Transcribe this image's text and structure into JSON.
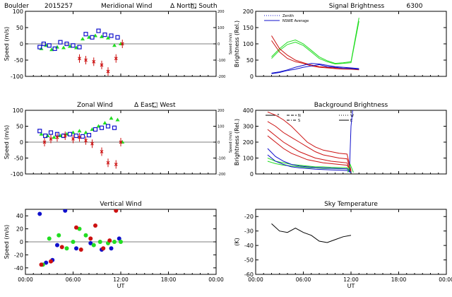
{
  "page": {
    "header_site": "Boulder",
    "header_code": "2015257",
    "bottom_xlabel": "UT",
    "time_ticks": [
      "00:00",
      "06:00",
      "12:00",
      "18:00",
      "00:00"
    ]
  },
  "colors": {
    "green": "#22dd22",
    "blue": "#1010cc",
    "red": "#cc1111",
    "black": "#000000"
  },
  "chart_data": [
    {
      "id": "meridional",
      "type": "scatter",
      "title": "Meridional Wind",
      "legend_text": [
        "Δ North,",
        "□ South"
      ],
      "ylabel": "Speed (m/s)",
      "right_ylabel": "Speed (m/s)",
      "xlim": [
        0,
        24
      ],
      "ylim": [
        -100,
        100
      ],
      "yticks": [
        -100,
        -50,
        0,
        50,
        100
      ],
      "right_ticks": [
        "-200",
        "-100",
        "0",
        "100",
        "200"
      ],
      "series": [
        {
          "color": "green",
          "marker": "triangle",
          "x": [
            2.0,
            2.6,
            3.3,
            4.0,
            4.8,
            5.6,
            6.4,
            7.2,
            8.0,
            8.8,
            9.6,
            10.4,
            11.2,
            12.0
          ],
          "y": [
            -15,
            -5,
            -18,
            -10,
            -12,
            -8,
            -12,
            15,
            20,
            25,
            22,
            18,
            -5,
            0
          ]
        },
        {
          "color": "blue",
          "marker": "square",
          "x": [
            1.8,
            2.3,
            3.0,
            3.7,
            4.4,
            5.2,
            6.0,
            6.8,
            7.6,
            8.4,
            9.2,
            10.0,
            10.8,
            11.6
          ],
          "y": [
            -10,
            0,
            -5,
            -15,
            5,
            0,
            -5,
            -10,
            30,
            20,
            40,
            28,
            25,
            20
          ]
        },
        {
          "color": "red",
          "marker": "x",
          "x": [
            6.8,
            7.6,
            8.6,
            9.6,
            10.4,
            11.4,
            12.2
          ],
          "y": [
            -45,
            -50,
            -55,
            -65,
            -85,
            -45,
            0
          ]
        }
      ]
    },
    {
      "id": "signal",
      "type": "line",
      "title": "Signal Brightness",
      "title_extra": "6300",
      "legend": [
        {
          "label": "Zenith",
          "style": "dotted"
        },
        {
          "label": "NSWE Average",
          "style": "solid"
        }
      ],
      "ylabel": "Brightness (Rel.)",
      "xlim": [
        0,
        24
      ],
      "ylim": [
        0,
        200
      ],
      "yticks": [
        0,
        50,
        100,
        150,
        200
      ],
      "series": [
        {
          "color": "green",
          "x": [
            2,
            3,
            4,
            5,
            6,
            7,
            8,
            9,
            10,
            11,
            12,
            13
          ],
          "y": [
            60,
            85,
            105,
            112,
            100,
            80,
            60,
            48,
            40,
            42,
            45,
            180
          ]
        },
        {
          "color": "green",
          "x": [
            2,
            3,
            4,
            5,
            6,
            7,
            8,
            9,
            10,
            11,
            12,
            13
          ],
          "y": [
            55,
            80,
            98,
            105,
            95,
            75,
            55,
            45,
            38,
            40,
            42,
            170
          ]
        },
        {
          "color": "red",
          "x": [
            2,
            3,
            4,
            5,
            6,
            7,
            8,
            9,
            10,
            11,
            12,
            13
          ],
          "y": [
            125,
            85,
            65,
            50,
            42,
            35,
            30,
            28,
            26,
            25,
            25,
            22
          ]
        },
        {
          "color": "red",
          "x": [
            2,
            3,
            4,
            5,
            6,
            7,
            8,
            9,
            10,
            11,
            12,
            13
          ],
          "y": [
            110,
            75,
            55,
            45,
            40,
            32,
            28,
            26,
            24,
            22,
            22,
            20
          ]
        },
        {
          "color": "blue",
          "x": [
            2,
            3,
            4,
            5,
            6,
            7,
            8,
            9,
            10,
            11,
            12,
            13
          ],
          "y": [
            8,
            12,
            18,
            22,
            28,
            32,
            36,
            30,
            28,
            25,
            24,
            22
          ]
        },
        {
          "color": "blue",
          "x": [
            2,
            3,
            4,
            5,
            6,
            7,
            8,
            9,
            10,
            11,
            12,
            13
          ],
          "y": [
            10,
            14,
            20,
            28,
            34,
            40,
            38,
            34,
            30,
            28,
            26,
            24
          ]
        }
      ]
    },
    {
      "id": "zonal",
      "type": "scatter",
      "title": "Zonal Wind",
      "legend_text": [
        "Δ East,",
        "□ West"
      ],
      "ylabel": "Speed (m/s)",
      "right_ylabel": "Speed (m/s)",
      "xlim": [
        0,
        24
      ],
      "ylim": [
        -100,
        100
      ],
      "yticks": [
        -100,
        -50,
        0,
        50,
        100
      ],
      "right_ticks": [
        "-200",
        "-100",
        "0",
        "100",
        "200"
      ],
      "series": [
        {
          "color": "green",
          "marker": "triangle",
          "x": [
            2.0,
            2.8,
            3.6,
            4.4,
            5.2,
            6.0,
            6.8,
            7.6,
            8.4,
            9.2,
            10.0,
            10.8,
            11.6,
            12.2
          ],
          "y": [
            25,
            20,
            15,
            20,
            25,
            30,
            35,
            30,
            40,
            50,
            60,
            75,
            70,
            0
          ]
        },
        {
          "color": "blue",
          "marker": "square",
          "x": [
            1.8,
            2.5,
            3.2,
            4.0,
            4.8,
            5.6,
            6.4,
            7.2,
            8.0,
            8.8,
            9.6,
            10.4,
            11.2
          ],
          "y": [
            35,
            20,
            30,
            25,
            20,
            25,
            20,
            18,
            22,
            40,
            45,
            50,
            45
          ]
        },
        {
          "color": "red",
          "marker": "x",
          "x": [
            2.4,
            3.2,
            4.0,
            5.0,
            6.0,
            6.8,
            7.6,
            8.4,
            9.6,
            10.4,
            11.4,
            12.0
          ],
          "y": [
            0,
            10,
            15,
            20,
            10,
            15,
            5,
            -5,
            -30,
            -65,
            -70,
            0
          ]
        }
      ]
    },
    {
      "id": "background",
      "type": "line",
      "title": "Background Brightness",
      "legend": [
        {
          "label": "Z",
          "style": "solid"
        },
        {
          "label": "N",
          "style": "dashed"
        },
        {
          "label": "S",
          "style": "dashdot"
        },
        {
          "label": "W",
          "style": "dotted"
        },
        {
          "label": "E",
          "style": "solid"
        }
      ],
      "ylabel": "Brightness (Rel.)",
      "xlim": [
        0,
        24
      ],
      "ylim": [
        0,
        400
      ],
      "yticks": [
        0,
        100,
        200,
        300,
        400
      ],
      "series": [
        {
          "color": "red",
          "x": [
            1.5,
            2.5,
            3.5,
            4.5,
            5.5,
            6.5,
            7.5,
            8.5,
            9.5,
            10.5,
            11.5,
            12.0
          ],
          "y": [
            390,
            370,
            340,
            300,
            250,
            200,
            170,
            150,
            140,
            130,
            125,
            20
          ]
        },
        {
          "color": "red",
          "x": [
            1.5,
            2.5,
            3.5,
            4.5,
            5.5,
            6.5,
            7.5,
            8.5,
            9.5,
            10.5,
            11.5,
            12.0
          ],
          "y": [
            330,
            300,
            260,
            230,
            200,
            170,
            140,
            120,
            110,
            100,
            95,
            20
          ]
        },
        {
          "color": "red",
          "x": [
            1.5,
            2.5,
            3.5,
            4.5,
            5.5,
            6.5,
            7.5,
            8.5,
            9.5,
            10.5,
            11.5,
            12.0
          ],
          "y": [
            280,
            240,
            200,
            170,
            140,
            120,
            100,
            90,
            80,
            75,
            70,
            15
          ]
        },
        {
          "color": "red",
          "x": [
            1.5,
            2.5,
            3.5,
            4.5,
            5.5,
            6.5,
            7.5,
            8.5,
            9.5,
            10.5,
            11.5,
            12.0
          ],
          "y": [
            240,
            200,
            160,
            130,
            110,
            90,
            80,
            70,
            65,
            60,
            55,
            15
          ]
        },
        {
          "color": "green",
          "x": [
            1.5,
            2.5,
            3.5,
            4.5,
            5.5,
            6.5,
            7.5,
            8.5,
            9.5,
            10.5,
            11.5,
            12.0
          ],
          "y": [
            100,
            80,
            70,
            60,
            55,
            50,
            45,
            45,
            42,
            40,
            40,
            10
          ]
        },
        {
          "color": "green",
          "x": [
            1.5,
            2.5,
            3.5,
            4.5,
            5.5,
            6.5,
            7.5,
            8.5,
            9.5,
            10.5,
            11.5,
            12.0
          ],
          "y": [
            80,
            65,
            55,
            50,
            45,
            40,
            38,
            35,
            34,
            33,
            32,
            10
          ]
        },
        {
          "color": "blue",
          "x": [
            1.5,
            2.5,
            3.5,
            4.5,
            5.5,
            6.5,
            7.5,
            8.5,
            9.5,
            10.5,
            11.5,
            12.0
          ],
          "y": [
            160,
            110,
            80,
            60,
            50,
            45,
            40,
            38,
            36,
            34,
            32,
            10
          ]
        },
        {
          "color": "blue",
          "x": [
            1.5,
            2.5,
            3.5,
            4.5,
            5.5,
            6.5,
            7.5,
            8.5,
            9.5,
            10.5,
            11.5,
            12.0
          ],
          "y": [
            120,
            80,
            60,
            45,
            38,
            34,
            30,
            28,
            26,
            24,
            22,
            8
          ]
        },
        {
          "color": "blue",
          "x": [
            11.8,
            12.0,
            12.2
          ],
          "y": [
            20,
            300,
            400
          ]
        },
        {
          "color": "green",
          "x": [
            11.6,
            11.9,
            12.3
          ],
          "y": [
            10,
            60,
            10
          ]
        }
      ]
    },
    {
      "id": "vertical",
      "type": "scatter",
      "title": "Vertical Wind",
      "ylabel": "Speed (m/s)",
      "xlim": [
        0,
        24
      ],
      "ylim": [
        -50,
        50
      ],
      "yticks": [
        -40,
        -20,
        0,
        20,
        40
      ],
      "series": [
        {
          "color": "blue",
          "marker": "circle",
          "x": [
            1.8,
            2.6,
            3.4,
            4.0,
            5.0,
            6.4,
            8.2,
            9.6,
            10.8,
            11.8
          ],
          "y": [
            43,
            -32,
            -28,
            -5,
            48,
            -10,
            -2,
            -12,
            -10,
            5
          ]
        },
        {
          "color": "green",
          "marker": "circle",
          "x": [
            2.2,
            3.0,
            4.2,
            5.2,
            6.0,
            6.8,
            7.6,
            8.6,
            9.4,
            10.4,
            11.2,
            12.0
          ],
          "y": [
            -35,
            5,
            10,
            -10,
            0,
            20,
            10,
            -5,
            0,
            -2,
            0,
            0
          ]
        },
        {
          "color": "red",
          "marker": "circle",
          "x": [
            2.0,
            3.2,
            4.6,
            6.4,
            7.0,
            8.2,
            8.8,
            9.8,
            10.6,
            11.4
          ],
          "y": [
            -35,
            -30,
            -8,
            22,
            -12,
            5,
            25,
            -10,
            2,
            48
          ]
        }
      ]
    },
    {
      "id": "sky",
      "type": "line",
      "title": "Sky Temperature",
      "ylabel": "(K)",
      "xlim": [
        0,
        24
      ],
      "ylim": [
        -60,
        -15
      ],
      "yticks": [
        -60,
        -50,
        -40,
        -30,
        -20
      ],
      "series": [
        {
          "color": "black",
          "x": [
            2,
            3,
            4,
            5,
            6,
            7,
            8,
            9,
            10,
            11,
            12
          ],
          "y": [
            -25,
            -30,
            -31,
            -28,
            -31,
            -33,
            -37,
            -38,
            -36,
            -34,
            -33
          ]
        }
      ]
    }
  ]
}
